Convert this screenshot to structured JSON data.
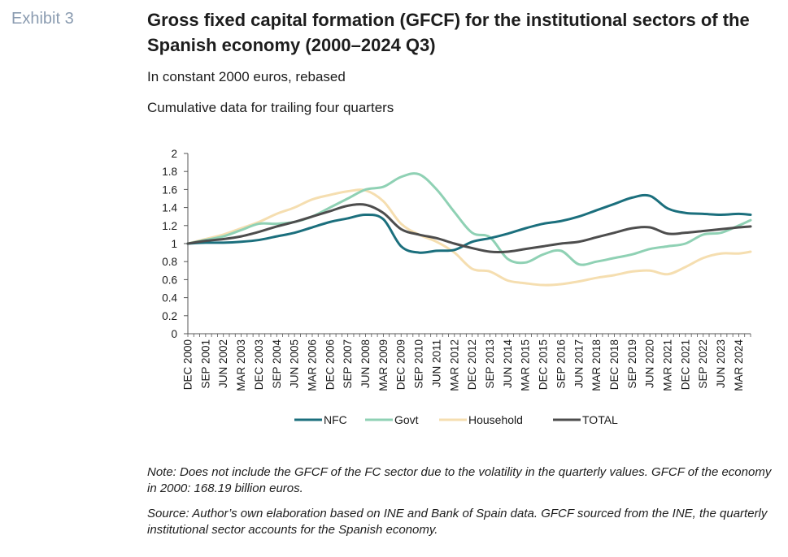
{
  "exhibit_label": "Exhibit 3",
  "title": "Gross fixed capital formation (GFCF) for the institutional sectors of the Spanish economy (2000–2024 Q3)",
  "subtitle": "In constant 2000 euros, rebased",
  "subtitle2": "Cumulative data for trailing four quarters",
  "note": "Note: Does not include the GFCF of the FC sector due to the volatility in the quarterly values. GFCF of the economy in 2000: 168.19 billion euros.",
  "source": "Source: Author’s own elaboration based on INE and Bank of Spain data. GFCF sourced from the INE, the quarterly institutional sector accounts for the Spanish economy.",
  "chart_data": {
    "type": "line",
    "x_tick_labels": [
      "DEC 2000",
      "SEP 2001",
      "JUN 2002",
      "MAR 2003",
      "DEC 2003",
      "SEP 2004",
      "JUN 2005",
      "MAR 2006",
      "DEC 2006",
      "SEP 2007",
      "JUN 2008",
      "MAR 2009",
      "DEC 2009",
      "SEP 2010",
      "JUN 2011",
      "MAR 2012",
      "DEC 2012",
      "SEP 2013",
      "JUN 2014",
      "MAR 2015",
      "DEC 2015",
      "SEP 2016",
      "JUN 2017",
      "MAR 2018",
      "DEC 2018",
      "SEP 2019",
      "JUN 2020",
      "MAR 2021",
      "DEC 2021",
      "SEP 2022",
      "JUN 2023",
      "MAR 2024"
    ],
    "ylim": [
      0,
      2
    ],
    "y_ticks": [
      "0",
      "0.2",
      "0.4",
      "0.6",
      "0.8",
      "1",
      "1.2",
      "1.4",
      "1.6",
      "1.8",
      "2"
    ],
    "legend_position": "bottom",
    "grid": false,
    "series": [
      {
        "name": "NFC",
        "color": "#1b6f7d",
        "x": [
          "DEC 2000",
          "SEP 2001",
          "JUN 2002",
          "MAR 2003",
          "DEC 2003",
          "SEP 2004",
          "JUN 2005",
          "MAR 2006",
          "DEC 2006",
          "SEP 2007",
          "JUN 2008",
          "MAR 2009",
          "DEC 2009",
          "SEP 2010",
          "JUN 2011",
          "MAR 2012",
          "DEC 2012",
          "SEP 2013",
          "JUN 2014",
          "MAR 2015",
          "DEC 2015",
          "SEP 2016",
          "JUN 2017",
          "MAR 2018",
          "DEC 2018",
          "SEP 2019",
          "JUN 2020",
          "MAR 2021",
          "DEC 2021",
          "SEP 2022",
          "JUN 2023",
          "MAR 2024",
          "SEP 2024"
        ],
        "values": [
          1.0,
          1.01,
          1.01,
          1.02,
          1.04,
          1.08,
          1.12,
          1.18,
          1.24,
          1.28,
          1.32,
          1.27,
          0.97,
          0.9,
          0.92,
          0.93,
          1.02,
          1.06,
          1.11,
          1.17,
          1.22,
          1.25,
          1.3,
          1.37,
          1.44,
          1.51,
          1.53,
          1.39,
          1.34,
          1.33,
          1.32,
          1.33,
          1.32
        ]
      },
      {
        "name": "Govt",
        "color": "#8fd1b4",
        "x": [
          "DEC 2000",
          "SEP 2001",
          "JUN 2002",
          "MAR 2003",
          "DEC 2003",
          "SEP 2004",
          "JUN 2005",
          "MAR 2006",
          "DEC 2006",
          "SEP 2007",
          "JUN 2008",
          "MAR 2009",
          "DEC 2009",
          "SEP 2010",
          "JUN 2011",
          "MAR 2012",
          "DEC 2012",
          "SEP 2013",
          "JUN 2014",
          "MAR 2015",
          "DEC 2015",
          "SEP 2016",
          "JUN 2017",
          "MAR 2018",
          "DEC 2018",
          "SEP 2019",
          "JUN 2020",
          "MAR 2021",
          "DEC 2021",
          "SEP 2022",
          "JUN 2023",
          "MAR 2024",
          "SEP 2024"
        ],
        "values": [
          1.0,
          1.04,
          1.08,
          1.15,
          1.22,
          1.22,
          1.24,
          1.3,
          1.4,
          1.5,
          1.6,
          1.63,
          1.74,
          1.77,
          1.6,
          1.35,
          1.12,
          1.07,
          0.83,
          0.79,
          0.88,
          0.92,
          0.77,
          0.8,
          0.84,
          0.88,
          0.94,
          0.97,
          1.0,
          1.1,
          1.12,
          1.2,
          1.26
        ]
      },
      {
        "name": "Household",
        "color": "#f5deb0",
        "x": [
          "DEC 2000",
          "SEP 2001",
          "JUN 2002",
          "MAR 2003",
          "DEC 2003",
          "SEP 2004",
          "JUN 2005",
          "MAR 2006",
          "DEC 2006",
          "SEP 2007",
          "JUN 2008",
          "MAR 2009",
          "DEC 2009",
          "SEP 2010",
          "JUN 2011",
          "MAR 2012",
          "DEC 2012",
          "SEP 2013",
          "JUN 2014",
          "MAR 2015",
          "DEC 2015",
          "SEP 2016",
          "JUN 2017",
          "MAR 2018",
          "DEC 2018",
          "SEP 2019",
          "JUN 2020",
          "MAR 2021",
          "DEC 2021",
          "SEP 2022",
          "JUN 2023",
          "MAR 2024",
          "SEP 2024"
        ],
        "values": [
          1.0,
          1.05,
          1.1,
          1.17,
          1.24,
          1.33,
          1.4,
          1.49,
          1.54,
          1.58,
          1.59,
          1.47,
          1.22,
          1.1,
          1.02,
          0.9,
          0.72,
          0.69,
          0.59,
          0.56,
          0.54,
          0.55,
          0.58,
          0.62,
          0.65,
          0.69,
          0.7,
          0.66,
          0.74,
          0.84,
          0.89,
          0.89,
          0.91
        ]
      },
      {
        "name": "TOTAL",
        "color": "#4d4d4d",
        "x": [
          "DEC 2000",
          "SEP 2001",
          "JUN 2002",
          "MAR 2003",
          "DEC 2003",
          "SEP 2004",
          "JUN 2005",
          "MAR 2006",
          "DEC 2006",
          "SEP 2007",
          "JUN 2008",
          "MAR 2009",
          "DEC 2009",
          "SEP 2010",
          "JUN 2011",
          "MAR 2012",
          "DEC 2012",
          "SEP 2013",
          "JUN 2014",
          "MAR 2015",
          "DEC 2015",
          "SEP 2016",
          "JUN 2017",
          "MAR 2018",
          "DEC 2018",
          "SEP 2019",
          "JUN 2020",
          "MAR 2021",
          "DEC 2021",
          "SEP 2022",
          "JUN 2023",
          "MAR 2024",
          "SEP 2024"
        ],
        "values": [
          1.0,
          1.03,
          1.05,
          1.08,
          1.13,
          1.19,
          1.24,
          1.3,
          1.36,
          1.42,
          1.43,
          1.34,
          1.16,
          1.1,
          1.06,
          1.0,
          0.95,
          0.91,
          0.91,
          0.94,
          0.97,
          1.0,
          1.02,
          1.07,
          1.12,
          1.17,
          1.18,
          1.11,
          1.12,
          1.14,
          1.16,
          1.18,
          1.19
        ]
      }
    ]
  }
}
